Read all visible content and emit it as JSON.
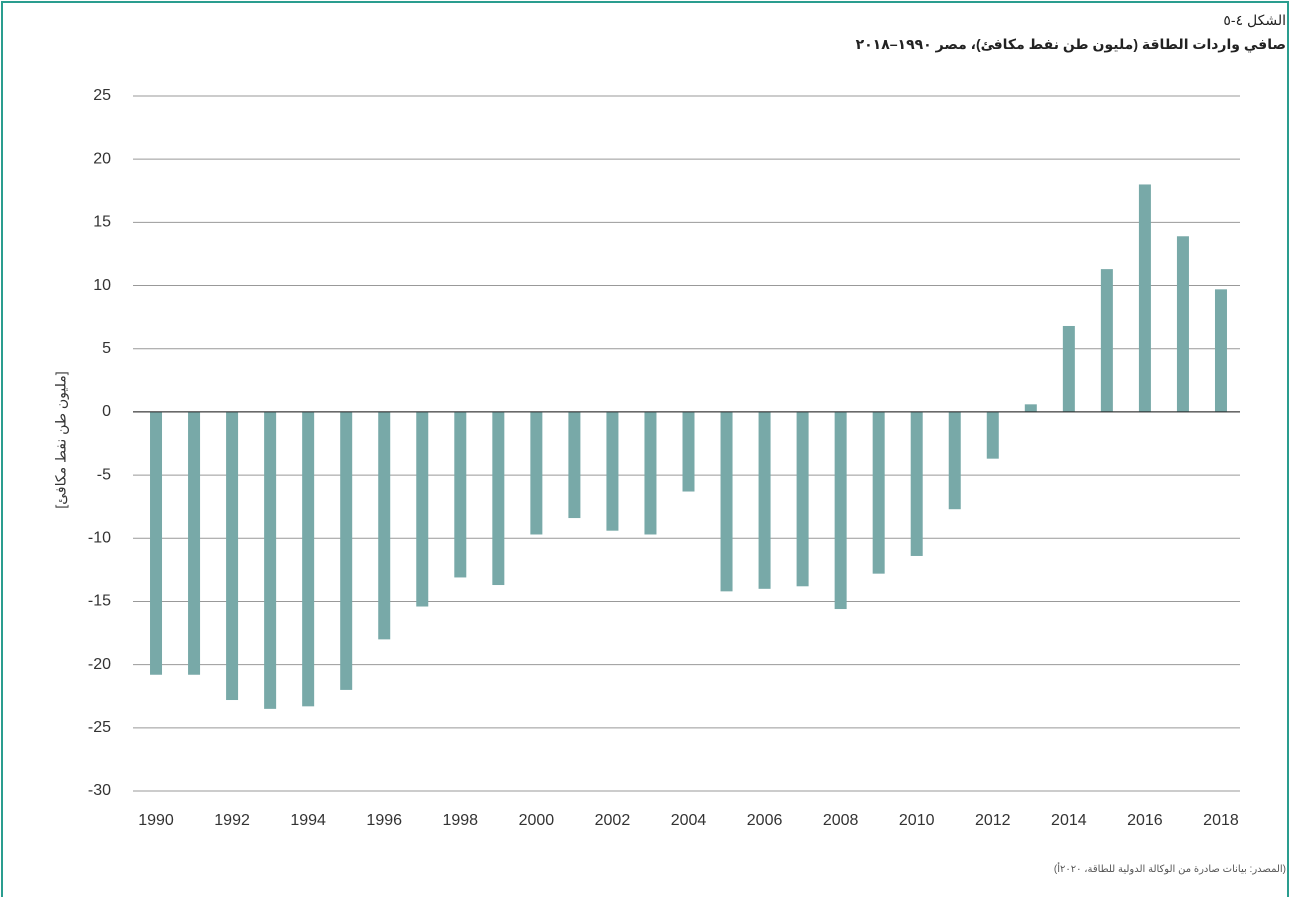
{
  "chart_data": {
    "type": "bar",
    "figure_label": "الشكل ٤-٥",
    "title": "صافي واردات الطاقة (مليون طن نفط مكافئ)، مصر ١٩٩٠–٢٠١٨",
    "y_label": "[مليون طن نفط مكافئ]",
    "source": "(المصدر: بيانات صادرة من الوكالة الدولية للطاقة، ٢٠٢٠أ)",
    "categories": [
      "1990",
      null,
      "1992",
      null,
      "1994",
      null,
      "1996",
      null,
      "1998",
      null,
      "2000",
      null,
      "2002",
      null,
      "2004",
      null,
      "2006",
      null,
      "2008",
      null,
      "2010",
      null,
      "2012",
      null,
      "2014",
      null,
      "2016",
      null,
      "2018"
    ],
    "values": [
      -20.8,
      -20.8,
      -22.8,
      -23.5,
      -23.3,
      -22.0,
      -18.0,
      -15.4,
      -13.1,
      -13.7,
      -9.7,
      -8.4,
      -9.4,
      -9.7,
      -6.3,
      -14.2,
      -14.0,
      -13.8,
      -15.6,
      -12.8,
      -11.4,
      -7.7,
      -3.7,
      0.6,
      6.8,
      11.3,
      18.0,
      13.9,
      9.7
    ],
    "color": "#78a9a8",
    "ylim": [
      -30,
      25
    ],
    "yticks": [
      -30,
      -25,
      -20,
      -15,
      -10,
      -5,
      0,
      5,
      10,
      15,
      20,
      25
    ],
    "grid": true
  }
}
